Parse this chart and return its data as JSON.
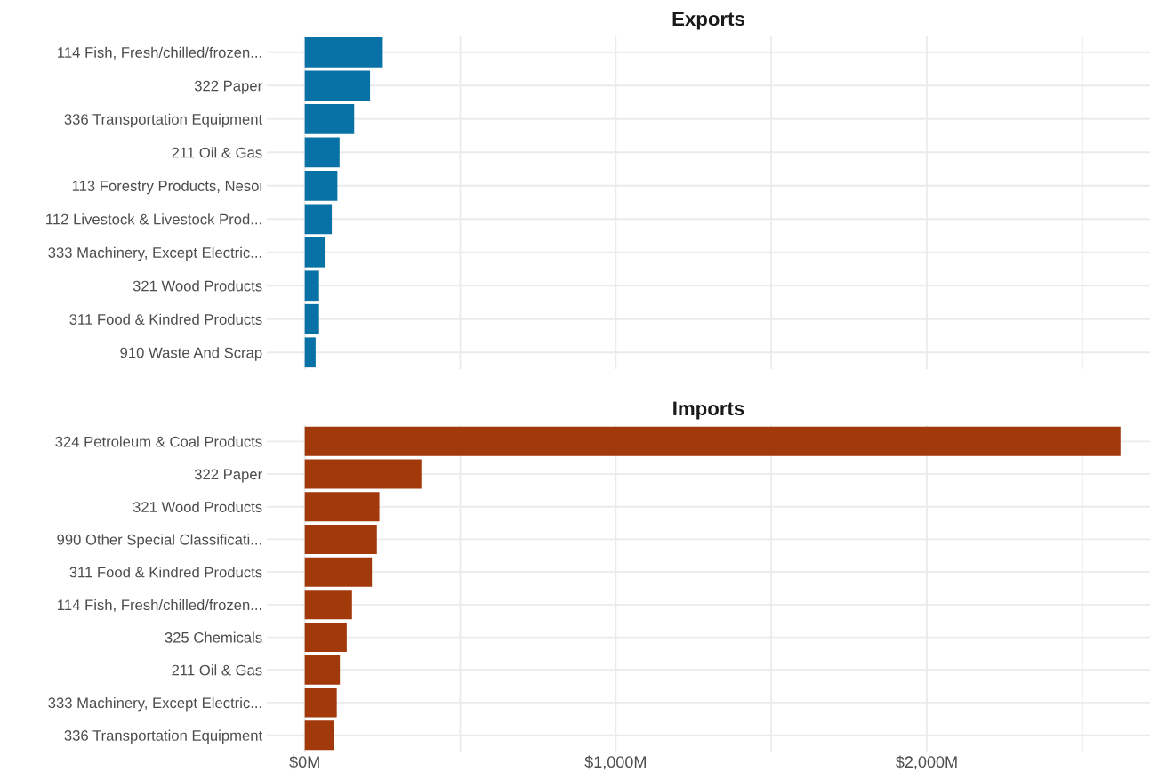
{
  "chart_data": [
    {
      "type": "bar",
      "title": "Exports",
      "orientation": "horizontal",
      "color": "#0872a6",
      "categories": [
        "114 Fish, Fresh/chilled/frozen...",
        "322 Paper",
        "336 Transportation Equipment",
        "211 Oil & Gas",
        "113 Forestry Products, Nesoi",
        "112 Livestock & Livestock Prod...",
        "333 Machinery, Except Electric...",
        "321 Wood Products",
        "311 Food & Kindred Products",
        "910 Waste And Scrap"
      ],
      "values": [
        251,
        210,
        159,
        112,
        105,
        87,
        64,
        46,
        46,
        35
      ],
      "xlim": [
        -122,
        2718
      ],
      "xticks": [
        {
          "value": 0,
          "label": null
        },
        {
          "value": 500,
          "label": null
        },
        {
          "value": 1000,
          "label": null
        },
        {
          "value": 1500,
          "label": null
        },
        {
          "value": 2000,
          "label": null
        },
        {
          "value": 2500,
          "label": null
        }
      ],
      "grid": true,
      "tick_labels": "y"
    },
    {
      "type": "bar",
      "title": "Imports",
      "orientation": "horizontal",
      "color": "#a1390a",
      "categories": [
        "324 Petroleum & Coal Products",
        "322 Paper",
        "321 Wood Products",
        "990 Other Special Classificati...",
        "311 Food & Kindred Products",
        "114 Fish, Fresh/chilled/frozen...",
        "325 Chemicals",
        "211 Oil & Gas",
        "333 Machinery, Except Electric...",
        "336 Transportation Equipment"
      ],
      "values": [
        2623,
        375,
        240,
        232,
        216,
        152,
        135,
        113,
        103,
        93
      ],
      "xlim": [
        -122,
        2718
      ],
      "xticks": [
        {
          "value": 0,
          "label": "$0M"
        },
        {
          "value": 500,
          "label": null
        },
        {
          "value": 1000,
          "label": "$1,000M"
        },
        {
          "value": 1500,
          "label": null
        },
        {
          "value": 2000,
          "label": "$2,000M"
        },
        {
          "value": 2500,
          "label": null
        }
      ],
      "grid": true
    }
  ]
}
